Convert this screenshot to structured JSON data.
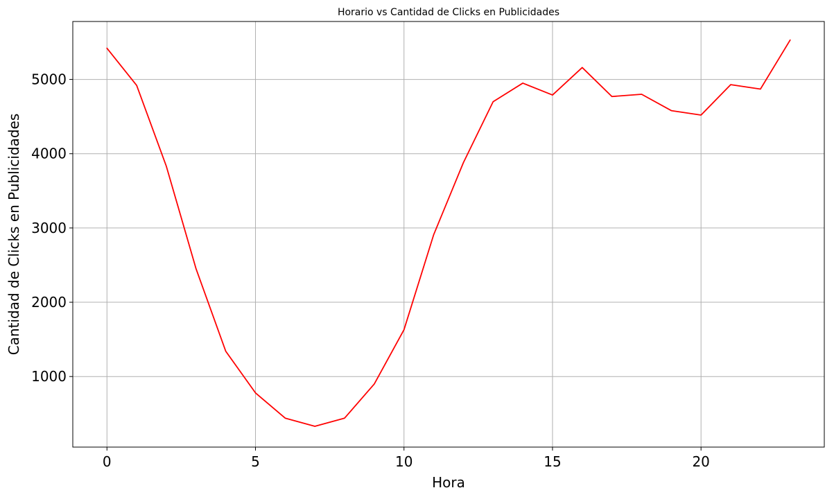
{
  "chart_data": {
    "type": "line",
    "title": "Horario vs Cantidad de Clicks en Publicidades",
    "xlabel": "Hora",
    "ylabel": "Cantidad de Clicks en Publicidades",
    "xlim": [
      -1.15,
      24.15
    ],
    "ylim": [
      50,
      5780
    ],
    "xticks": [
      0,
      5,
      10,
      15,
      20
    ],
    "yticks": [
      1000,
      2000,
      3000,
      4000,
      5000
    ],
    "grid": true,
    "legend": "none",
    "series": [
      {
        "color": "#ff0000",
        "x": [
          0,
          1,
          2,
          3,
          4,
          5,
          6,
          7,
          8,
          9,
          10,
          11,
          12,
          13,
          14,
          15,
          16,
          17,
          18,
          19,
          20,
          21,
          22,
          23
        ],
        "y": [
          5420,
          4920,
          3830,
          2450,
          1340,
          780,
          440,
          330,
          440,
          900,
          1630,
          2910,
          3880,
          4700,
          4950,
          4790,
          5160,
          4770,
          4800,
          4580,
          4520,
          4930,
          4870,
          5530
        ]
      }
    ]
  }
}
